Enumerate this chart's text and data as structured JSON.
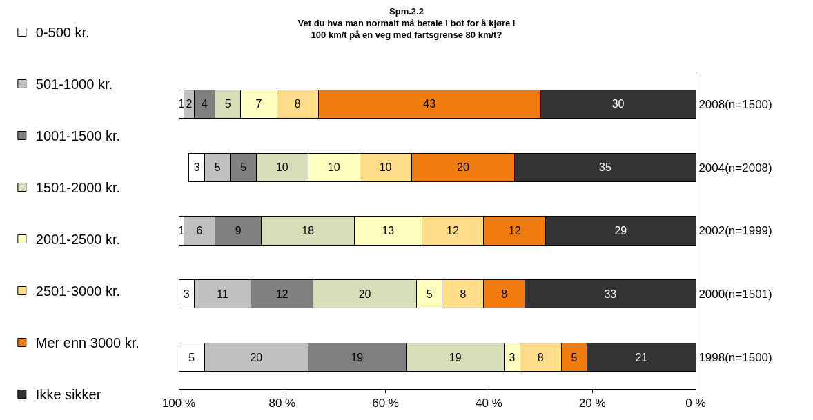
{
  "chart_data": {
    "type": "bar",
    "orientation": "horizontal",
    "stacked": true,
    "data_labels": true,
    "grid": false,
    "legend": "left",
    "title": "Spm.2.2\nVet du hva man normalt må betale i bot for å kjøre i\n100 km/t på en veg med fartsgrense 80 km/t?",
    "categories": [
      "2008(n=1500)",
      "2004(n=2008)",
      "2002(n=1999)",
      "2000(n=1501)",
      "1998(n=1500)"
    ],
    "xlim": [
      100,
      0
    ],
    "xticks": [
      {
        "value": 100,
        "label": "100 %"
      },
      {
        "value": 80,
        "label": "80 %"
      },
      {
        "value": 60,
        "label": "60 %"
      },
      {
        "value": 40,
        "label": "40 %"
      },
      {
        "value": 20,
        "label": "20 %"
      },
      {
        "value": 0,
        "label": "0 %"
      }
    ],
    "series": [
      {
        "name": "Ikke sikker",
        "color": "#333333",
        "values": [
          30,
          35,
          29,
          33,
          21
        ]
      },
      {
        "name": "Mer enn 3000 kr.",
        "color": "#f07c10",
        "values": [
          43,
          20,
          12,
          8,
          5
        ]
      },
      {
        "name": "2501-3000 kr.",
        "color": "#ffdd88",
        "values": [
          8,
          10,
          12,
          8,
          8
        ]
      },
      {
        "name": "2001-2500 kr.",
        "color": "#ffffc0",
        "values": [
          7,
          10,
          13,
          5,
          3
        ]
      },
      {
        "name": "1501-2000 kr.",
        "color": "#d6dfb8",
        "values": [
          5,
          10,
          18,
          20,
          19
        ]
      },
      {
        "name": "1001-1500 kr.",
        "color": "#808080",
        "values": [
          4,
          5,
          9,
          12,
          19
        ]
      },
      {
        "name": "501-1000 kr.",
        "color": "#c0c0c0",
        "values": [
          2,
          5,
          6,
          11,
          20
        ]
      },
      {
        "name": "0-500 kr.",
        "color": "#ffffff",
        "values": [
          1,
          3,
          1,
          3,
          5
        ]
      }
    ]
  }
}
